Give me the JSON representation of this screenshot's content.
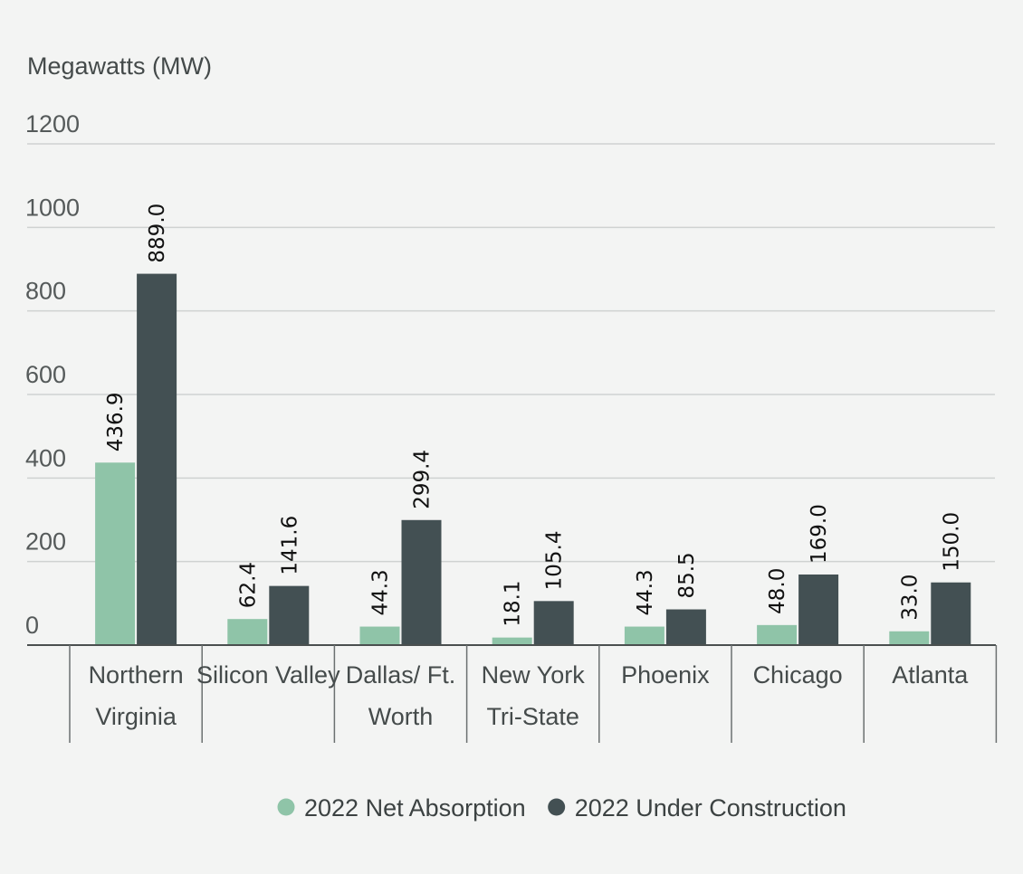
{
  "chart_data": {
    "type": "bar",
    "ylabel": "Megawatts (MW)",
    "ylim": [
      0,
      1200
    ],
    "yticks": [
      0,
      200,
      400,
      600,
      800,
      1000,
      1200
    ],
    "grid": true,
    "legend_position": "bottom",
    "categories": [
      [
        "Northern",
        "Virginia"
      ],
      [
        "Silicon Valley"
      ],
      [
        "Dallas/ Ft.",
        "Worth"
      ],
      [
        "New York",
        "Tri-State"
      ],
      [
        "Phoenix"
      ],
      [
        "Chicago"
      ],
      [
        "Atlanta"
      ]
    ],
    "series": [
      {
        "name": "2022 Net Absorption",
        "color": "#8fc4a8",
        "values": [
          436.9,
          62.4,
          44.3,
          18.1,
          44.3,
          48.0,
          33.0
        ],
        "labels": [
          "436.9",
          "62.4",
          "44.3",
          "18.1",
          "44.3",
          "48.0",
          "33.0"
        ]
      },
      {
        "name": "2022 Under Construction",
        "color": "#435053",
        "values": [
          889.0,
          141.6,
          299.4,
          105.4,
          85.5,
          169.0,
          150.0
        ],
        "labels": [
          "889.0",
          "141.6",
          "299.4",
          "105.4",
          "85.5",
          "169.0",
          "150.0"
        ]
      }
    ]
  }
}
